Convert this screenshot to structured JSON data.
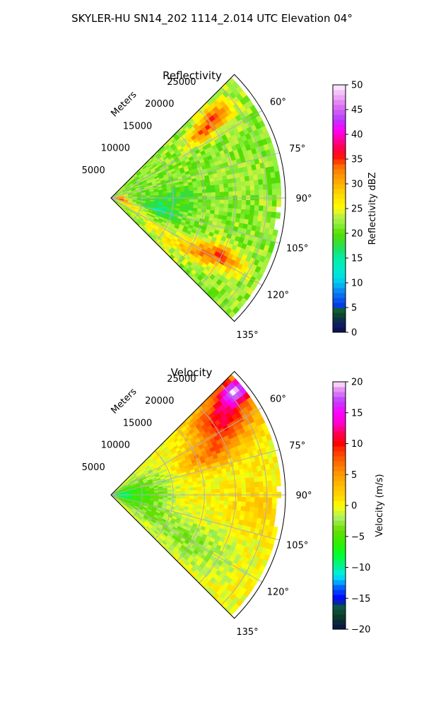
{
  "figure": {
    "title": "SKYLER-HU  SN14_202  1114_2.014 UTC Elevation 04°"
  },
  "chart_data": [
    {
      "type": "heatmap",
      "subtype": "polar-sector",
      "title": "Reflectivity",
      "radial_axis_label": "Meters",
      "radial_ticks": [
        5000,
        10000,
        15000,
        20000,
        25000
      ],
      "radial_tick_labels": [
        "5000",
        "10000",
        "15000",
        "20000",
        "25000"
      ],
      "rmax": 28000,
      "azimuth_range": [
        45,
        135
      ],
      "azimuth_ticks": [
        60,
        75,
        90,
        105,
        120,
        135
      ],
      "azimuth_tick_labels": [
        "60°",
        "75°",
        "90°",
        "105°",
        "120°",
        "135°"
      ],
      "grid": true,
      "colorbar": {
        "label": "Reflectivity dBZ",
        "range": [
          0,
          50
        ],
        "ticks": [
          0,
          5,
          10,
          15,
          20,
          25,
          30,
          35,
          40,
          45,
          50
        ],
        "tick_labels": [
          "0",
          "5",
          "10",
          "15",
          "20",
          "25",
          "30",
          "35",
          "40",
          "45",
          "50"
        ]
      },
      "value_range": [
        0,
        50
      ],
      "field": {
        "background": 22,
        "texture": 2.5,
        "features": [
          {
            "az": 52,
            "r": 21000,
            "daz": 5,
            "dr": 3500,
            "value": 33
          },
          {
            "az": 55,
            "r": 17500,
            "daz": 4,
            "dr": 2500,
            "value": 30
          },
          {
            "az": 118,
            "r": 20000,
            "daz": 5,
            "dr": 3500,
            "value": 34
          },
          {
            "az": 123,
            "r": 16000,
            "daz": 5,
            "dr": 3000,
            "value": 30
          },
          {
            "az": 104,
            "r": 7500,
            "daz": 9,
            "dr": 3500,
            "value": 16
          },
          {
            "az": 90,
            "r": 10000,
            "daz": 10,
            "dr": 5000,
            "value": 19
          },
          {
            "az": 100,
            "r": 1500,
            "daz": 10,
            "dr": 1300,
            "value": 33
          },
          {
            "az": 85,
            "r": 1200,
            "daz": 6,
            "dr": 1100,
            "value": 32
          },
          {
            "az": 65,
            "r": 6000,
            "daz": 10,
            "dr": 3500,
            "value": 21
          },
          {
            "az": 110,
            "r": 4000,
            "daz": 10,
            "dr": 3000,
            "value": 27
          },
          {
            "az": 125,
            "r": 10000,
            "daz": 8,
            "dr": 4500,
            "value": 26
          }
        ]
      }
    },
    {
      "type": "heatmap",
      "subtype": "polar-sector",
      "title": "Velocity",
      "radial_axis_label": "Meters",
      "radial_ticks": [
        5000,
        10000,
        15000,
        20000,
        25000
      ],
      "radial_tick_labels": [
        "5000",
        "10000",
        "15000",
        "20000",
        "25000"
      ],
      "rmax": 28000,
      "azimuth_range": [
        45,
        135
      ],
      "azimuth_ticks": [
        60,
        75,
        90,
        105,
        120,
        135
      ],
      "azimuth_tick_labels": [
        "60°",
        "75°",
        "90°",
        "105°",
        "120°",
        "135°"
      ],
      "grid": true,
      "colorbar": {
        "label": "Velocity (m/s)",
        "range": [
          -20,
          20
        ],
        "ticks": [
          -20,
          -15,
          -10,
          -5,
          0,
          5,
          10,
          15,
          20
        ],
        "tick_labels": [
          "−20",
          "−15",
          "−10",
          "−5",
          "0",
          "5",
          "10",
          "15",
          "20"
        ]
      },
      "value_range": [
        -20,
        20
      ],
      "field": {
        "background": 0,
        "texture": 1.5,
        "features": [
          {
            "az": 90,
            "r": 1000,
            "daz": 30,
            "dr": 3500,
            "value": -8
          },
          {
            "az": 90,
            "r": 6000,
            "daz": 30,
            "dr": 4000,
            "value": -4
          },
          {
            "az": 120,
            "r": 14000,
            "daz": 12,
            "dr": 8000,
            "value": -3
          },
          {
            "az": 55,
            "r": 22000,
            "daz": 10,
            "dr": 5500,
            "value": 11
          },
          {
            "az": 50,
            "r": 26000,
            "daz": 4,
            "dr": 2500,
            "value": 15
          },
          {
            "az": 68,
            "r": 17000,
            "daz": 7,
            "dr": 4500,
            "value": 6
          },
          {
            "az": 95,
            "r": 24000,
            "daz": 10,
            "dr": 5000,
            "value": 2
          }
        ]
      }
    }
  ]
}
